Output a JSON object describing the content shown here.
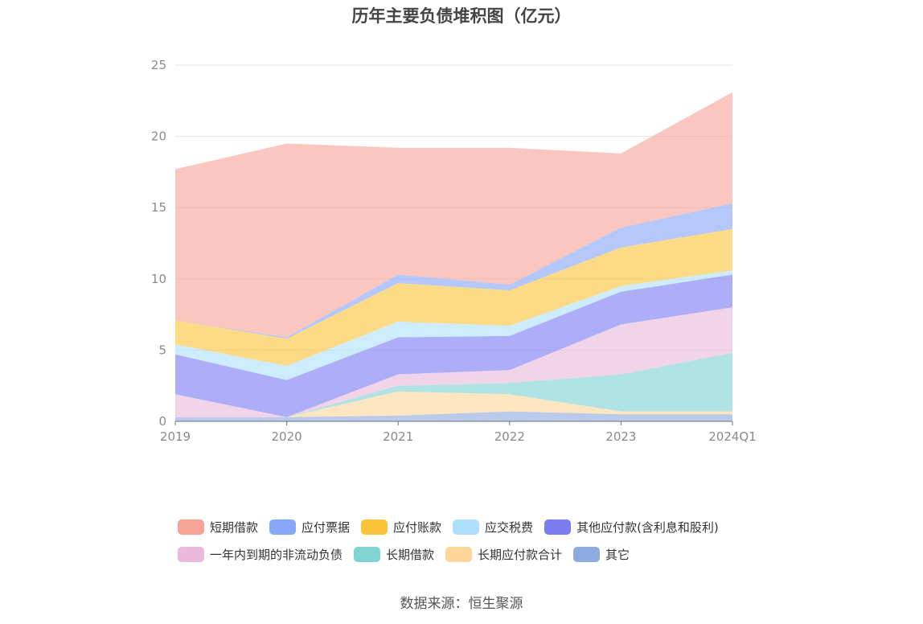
{
  "chart_data": {
    "type": "area",
    "stacked": true,
    "title": "历年主要负债堆积图（亿元）",
    "source": "数据来源：恒生聚源",
    "x": [
      "2019",
      "2020",
      "2021",
      "2022",
      "2023",
      "2024Q1"
    ],
    "ylim": [
      0,
      25
    ],
    "yticks": [
      "0",
      "5",
      "10",
      "15",
      "20",
      "25"
    ],
    "grid": true,
    "legend_position": "bottom",
    "series": [
      {
        "name": "其它",
        "color": "#8eaadf",
        "values": [
          0.3,
          0.3,
          0.4,
          0.7,
          0.5,
          0.5
        ]
      },
      {
        "name": "长期应付款合计",
        "color": "#fdd699",
        "values": [
          0.0,
          0.0,
          1.7,
          1.2,
          0.2,
          0.2
        ]
      },
      {
        "name": "长期借款",
        "color": "#80d4d4",
        "values": [
          0.0,
          0.0,
          0.4,
          0.8,
          2.6,
          4.1
        ]
      },
      {
        "name": "一年内到期的非流动负债",
        "color": "#eab9dc",
        "values": [
          1.6,
          0.0,
          0.8,
          0.9,
          3.5,
          3.2
        ]
      },
      {
        "name": "其他应付款(含利息和股利)",
        "color": "#7b7cf2",
        "values": [
          2.8,
          2.6,
          2.6,
          2.4,
          2.3,
          2.3
        ]
      },
      {
        "name": "应交税费",
        "color": "#aee0fb",
        "values": [
          0.7,
          1.0,
          1.1,
          0.7,
          0.4,
          0.3
        ]
      },
      {
        "name": "应付账款",
        "color": "#fcc43a",
        "values": [
          1.7,
          1.9,
          2.7,
          2.5,
          2.7,
          2.9
        ]
      },
      {
        "name": "应付票据",
        "color": "#87a7f8",
        "values": [
          0.0,
          0.1,
          0.6,
          0.4,
          1.4,
          1.8
        ]
      },
      {
        "name": "短期借款",
        "color": "#f9a398",
        "values": [
          10.6,
          13.6,
          8.9,
          9.6,
          5.2,
          7.8
        ]
      }
    ]
  },
  "legend": {
    "rows": [
      [
        {
          "label": "短期借款",
          "color": "#f9a398"
        },
        {
          "label": "应付票据",
          "color": "#87a7f8"
        },
        {
          "label": "应付账款",
          "color": "#fcc43a"
        },
        {
          "label": "应交税费",
          "color": "#aee0fb"
        },
        {
          "label": "其他应付款(含利息和股利)",
          "color": "#7b7cf2"
        }
      ],
      [
        {
          "label": "一年内到期的非流动负债",
          "color": "#eab9dc"
        },
        {
          "label": "长期借款",
          "color": "#80d4d4"
        },
        {
          "label": "长期应付款合计",
          "color": "#fdd699"
        },
        {
          "label": "其它",
          "color": "#8eaadf"
        }
      ]
    ]
  }
}
